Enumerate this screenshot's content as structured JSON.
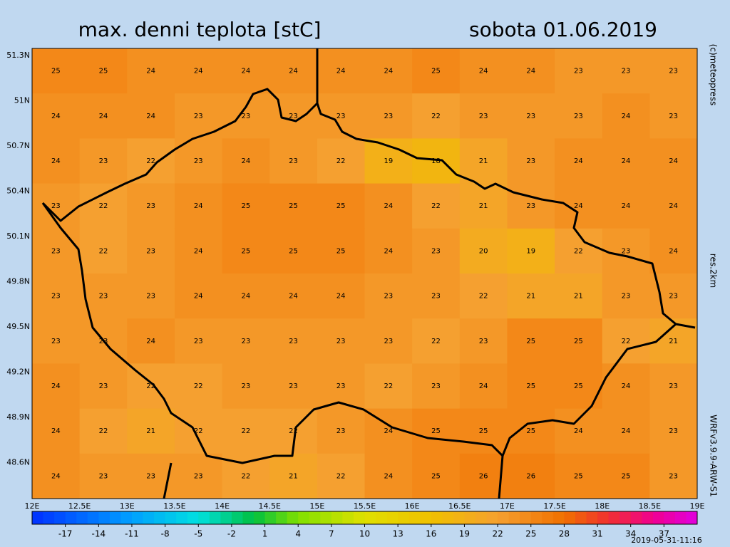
{
  "header": {
    "title": "max. denni teplota [stC]",
    "date": "sobota 01.06.2019"
  },
  "side_labels": [
    "(c)meteopress",
    "res.2km",
    "WRFv3.9.9-ARW-S1"
  ],
  "map": {
    "lon_labels": [
      "12E",
      "12.5E",
      "13E",
      "13.5E",
      "14E",
      "14.5E",
      "15E",
      "15.5E",
      "16E",
      "16.5E",
      "17E",
      "17.5E",
      "18E",
      "18.5E",
      "19E"
    ],
    "lat_labels": [
      "51.3N",
      "51N",
      "50.7N",
      "50.4N",
      "50.1N",
      "49.8N",
      "49.5N",
      "49.2N",
      "48.9N",
      "48.6N"
    ],
    "values": [
      [
        25,
        25,
        24,
        24,
        24,
        24,
        24,
        24,
        25,
        24,
        24,
        23,
        23,
        23
      ],
      [
        24,
        24,
        24,
        23,
        23,
        23,
        23,
        23,
        22,
        23,
        23,
        23,
        24,
        23
      ],
      [
        24,
        23,
        22,
        23,
        24,
        23,
        22,
        19,
        18,
        21,
        23,
        24,
        24,
        24
      ],
      [
        23,
        22,
        23,
        24,
        25,
        25,
        25,
        24,
        22,
        21,
        23,
        24,
        24,
        24
      ],
      [
        23,
        22,
        23,
        24,
        25,
        25,
        25,
        24,
        23,
        20,
        19,
        22,
        23,
        24
      ],
      [
        23,
        23,
        23,
        24,
        24,
        24,
        24,
        23,
        23,
        22,
        21,
        21,
        23,
        23
      ],
      [
        23,
        23,
        24,
        23,
        23,
        23,
        23,
        23,
        22,
        23,
        25,
        25,
        22,
        21
      ],
      [
        24,
        23,
        22,
        22,
        23,
        23,
        23,
        22,
        23,
        24,
        25,
        25,
        24,
        23
      ],
      [
        24,
        22,
        21,
        22,
        22,
        22,
        23,
        24,
        25,
        25,
        25,
        24,
        24,
        23
      ],
      [
        24,
        23,
        23,
        23,
        22,
        21,
        22,
        24,
        25,
        26,
        26,
        25,
        25,
        23
      ]
    ]
  },
  "colorbar": {
    "clim": [
      -20,
      40
    ],
    "ticks": [
      -17,
      -14,
      -11,
      -8,
      -5,
      -2,
      1,
      4,
      7,
      10,
      13,
      16,
      19,
      22,
      25,
      28,
      31,
      34,
      37
    ]
  },
  "timestamp": "2019-05-31-11:16"
}
